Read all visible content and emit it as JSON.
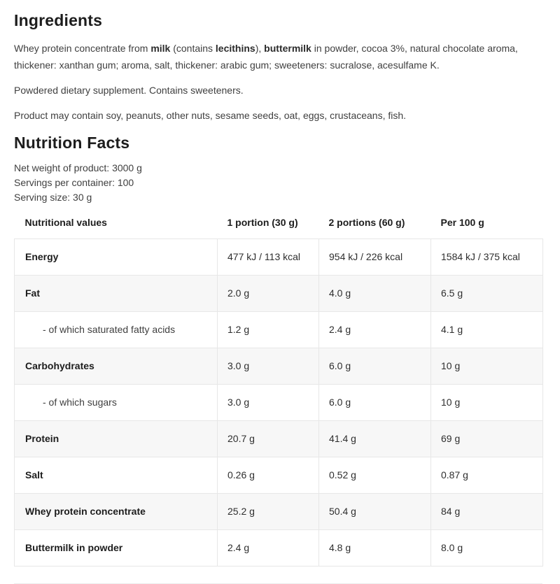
{
  "colors": {
    "heading_text": "#1d1d1d",
    "body_text": "#3f3f3f",
    "table_border": "#e7e7e7",
    "alt_row_background": "#f7f7f7"
  },
  "ingredients": {
    "title": "Ingredients",
    "description": {
      "segments": [
        {
          "text": "Whey protein concentrate from ",
          "bold": false
        },
        {
          "text": "milk",
          "bold": true
        },
        {
          "text": " (contains ",
          "bold": false
        },
        {
          "text": "lecithins",
          "bold": true
        },
        {
          "text": "), ",
          "bold": false
        },
        {
          "text": "buttermilk",
          "bold": true
        },
        {
          "text": " in powder, cocoa 3%, natural chocolate aroma, thickener: xanthan gum; aroma, salt, thickener: arabic gum; sweeteners: sucralose, acesulfame K.",
          "bold": false
        }
      ]
    },
    "note_supplement": "Powdered dietary supplement. Contains sweeteners.",
    "note_allergens": "Product may contain soy, peanuts, other nuts, sesame seeds, oat, eggs, crustaceans, fish."
  },
  "nutrition": {
    "title": "Nutrition Facts",
    "net_weight": "Net weight of product: 3000 g",
    "servings_per_container": "Servings per container: 100",
    "serving_size": "Serving size: 30 g",
    "table": {
      "headers": [
        "Nutritional values",
        "1 portion (30 g)",
        "2 portions (60 g)",
        "Per 100 g"
      ],
      "rows": [
        {
          "label": "Energy",
          "sub": false,
          "values": [
            "477 kJ / 113 kcal",
            "954 kJ / 226 kcal",
            "1584 kJ / 375 kcal"
          ]
        },
        {
          "label": "Fat",
          "sub": false,
          "values": [
            "2.0 g",
            "4.0 g",
            "6.5 g"
          ]
        },
        {
          "label": "- of which saturated fatty acids",
          "sub": true,
          "values": [
            "1.2 g",
            "2.4 g",
            "4.1 g"
          ]
        },
        {
          "label": "Carbohydrates",
          "sub": false,
          "values": [
            "3.0 g",
            "6.0 g",
            "10 g"
          ]
        },
        {
          "label": "- of which sugars",
          "sub": true,
          "values": [
            "3.0 g",
            "6.0 g",
            "10 g"
          ]
        },
        {
          "label": "Protein",
          "sub": false,
          "values": [
            "20.7 g",
            "41.4 g",
            "69 g"
          ]
        },
        {
          "label": "Salt",
          "sub": false,
          "values": [
            "0.26 g",
            "0.52 g",
            "0.87 g"
          ]
        },
        {
          "label": "Whey protein concentrate",
          "sub": false,
          "values": [
            "25.2 g",
            "50.4 g",
            "84 g"
          ]
        },
        {
          "label": "Buttermilk in powder",
          "sub": false,
          "values": [
            "2.4 g",
            "4.8 g",
            "8.0 g"
          ]
        }
      ]
    }
  }
}
